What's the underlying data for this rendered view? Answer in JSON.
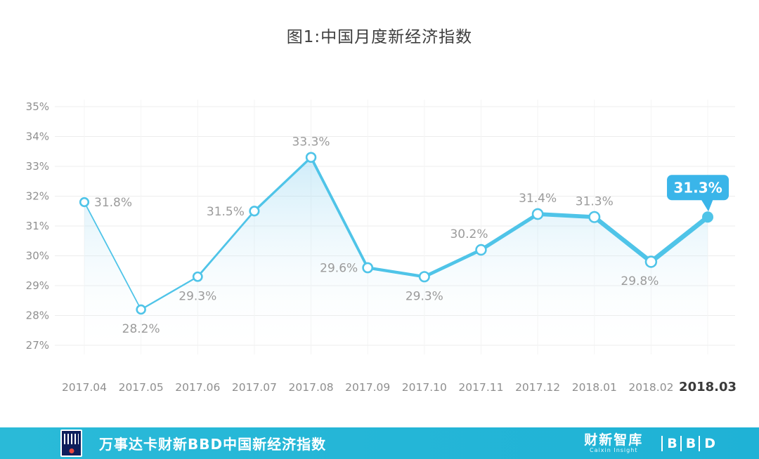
{
  "title": "图1:中国月度新经济指数",
  "chart_data": {
    "type": "line",
    "x": [
      "2017.04",
      "2017.05",
      "2017.06",
      "2017.07",
      "2017.08",
      "2017.09",
      "2017.10",
      "2017.11",
      "2017.12",
      "2018.01",
      "2018.02",
      "2018.03"
    ],
    "values": [
      31.8,
      28.2,
      29.3,
      31.5,
      33.3,
      29.6,
      29.3,
      30.2,
      31.4,
      31.3,
      29.8,
      31.3
    ],
    "labels": [
      "31.8%",
      "28.2%",
      "29.3%",
      "31.5%",
      "33.3%",
      "29.6%",
      "29.3%",
      "30.2%",
      "31.4%",
      "31.3%",
      "29.8%",
      "31.3%"
    ],
    "label_positions": [
      "right",
      "below",
      "below",
      "left",
      "above",
      "left",
      "below",
      "above-left",
      "above",
      "above",
      "below-left",
      "badge"
    ],
    "yticks": [
      "35%",
      "34%",
      "33%",
      "32%",
      "31%",
      "30%",
      "29%",
      "28%",
      "27%"
    ],
    "ylim": [
      27,
      35
    ],
    "grid": true,
    "legend": "none",
    "line_color": "#4fc4e8",
    "area_top_color": "rgba(140,210,240,0.42)",
    "badge_color": "#3ab5e9",
    "highlight_index": 11,
    "title": "图1:中国月度新经济指数",
    "xlabel": "",
    "ylabel": ""
  },
  "footer": {
    "title": "万事达卡财新BBD中国新经济指数",
    "right_brand": "财新智库",
    "right_brand_sub": "Caixin Insight",
    "bbd_letters": [
      "B",
      "B",
      "D"
    ],
    "bar_color": "#25b5d6"
  }
}
